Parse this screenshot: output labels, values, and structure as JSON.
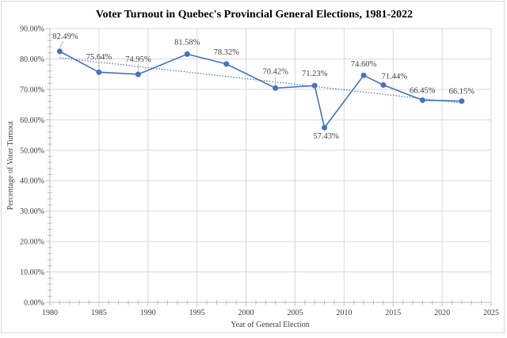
{
  "chart_data": {
    "type": "scatter",
    "title": "Voter Turnout in Quebec's Provincial General Elections, 1981-2022",
    "xlabel": "Year of General Election",
    "ylabel": "Percentage of Voter Turnout",
    "xlim": [
      1980,
      2025
    ],
    "ylim": [
      0,
      90
    ],
    "x_ticks": [
      1980,
      1985,
      1990,
      1995,
      2000,
      2005,
      2010,
      2015,
      2020,
      2025
    ],
    "x_tick_labels": [
      "1980",
      "1985",
      "1990",
      "1995",
      "2000",
      "2005",
      "2010",
      "2015",
      "2020",
      "2025"
    ],
    "y_ticks": [
      0,
      10,
      20,
      30,
      40,
      50,
      60,
      70,
      80,
      90
    ],
    "y_tick_labels": [
      "0.00%",
      "10.00%",
      "20.00%",
      "30.00%",
      "40.00%",
      "50.00%",
      "60.00%",
      "70.00%",
      "80.00%",
      "90.00%"
    ],
    "grid": true,
    "legend": "none",
    "series": [
      {
        "name": "Voter Turnout",
        "color": "#4472C4",
        "style": "line-with-markers",
        "x": [
          1981,
          1985,
          1989,
          1994,
          1998,
          2003,
          2007,
          2008,
          2012,
          2014,
          2018,
          2022
        ],
        "y": [
          82.49,
          75.64,
          74.95,
          81.58,
          78.32,
          70.42,
          71.23,
          57.43,
          74.6,
          71.44,
          66.45,
          66.15
        ],
        "labels": [
          "82.49%",
          "75.64%",
          "74.95%",
          "81.58%",
          "78.32%",
          "70.42%",
          "71.23%",
          "57.43%",
          "74.60%",
          "71.44%",
          "66.45%",
          "66.15%"
        ]
      }
    ],
    "trendline": {
      "type": "linear",
      "style": "dotted",
      "color": "#4472C4",
      "series": "Voter Turnout"
    }
  }
}
